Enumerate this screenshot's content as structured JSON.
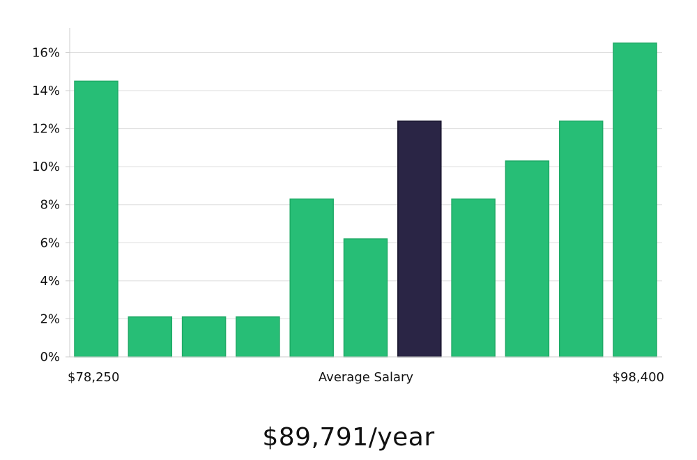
{
  "chart_data": {
    "type": "bar",
    "categories": [
      "",
      "",
      "",
      "",
      "",
      "",
      "",
      "",
      "",
      "",
      ""
    ],
    "values": [
      14.5,
      2.1,
      2.1,
      2.1,
      8.3,
      6.2,
      12.4,
      8.3,
      10.3,
      12.4,
      16.5
    ],
    "highlight_index": 6,
    "title": "",
    "xlabel": "Average Salary",
    "x_start_label": "$78,250",
    "x_end_label": "$98,400",
    "ylabel": "",
    "ylim": [
      0,
      17.3
    ],
    "yticks": [
      0,
      2,
      4,
      6,
      8,
      10,
      12,
      14,
      16
    ],
    "ytick_suffix": "%",
    "grid": true,
    "legend": "none",
    "colors": {
      "bar": "#27be76",
      "bar_edge": "#1faa66",
      "highlight": "#2a2545",
      "highlight_edge": "#15122a",
      "grid": "#dddddd",
      "axis": "#cccccc"
    }
  },
  "summary": {
    "average_salary": "$89,791/year"
  }
}
